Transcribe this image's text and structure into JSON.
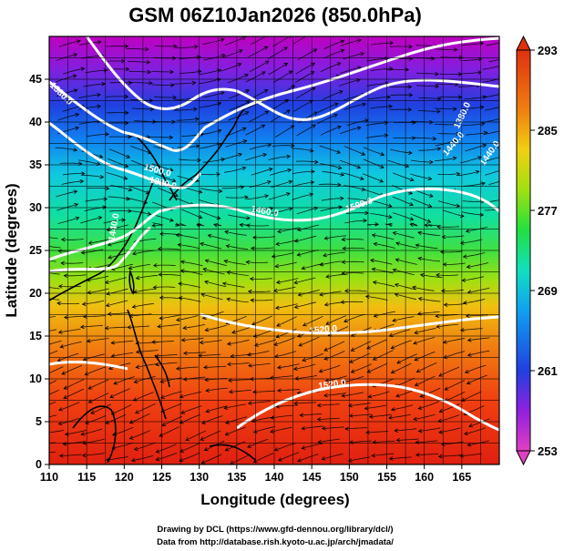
{
  "title": "GSM 06Z10Jan2026 (850.0hPa)",
  "x_axis": {
    "label": "Longitude (degrees)",
    "range": [
      110,
      170
    ],
    "ticks": [
      "110",
      "115",
      "120",
      "125",
      "130",
      "135",
      "140",
      "145",
      "150",
      "155",
      "160",
      "165"
    ]
  },
  "y_axis": {
    "label": "Latitude (degrees)",
    "range": [
      0,
      50
    ],
    "ticks": [
      "0",
      "5",
      "10",
      "15",
      "20",
      "25",
      "30",
      "35",
      "40",
      "45"
    ]
  },
  "colorbar": {
    "range": [
      253,
      293
    ],
    "ticks": [
      "253",
      "261",
      "269",
      "277",
      "285",
      "293"
    ]
  },
  "contour_labels": [
    "1380.0",
    "1440.0",
    "1440.0",
    "1500.0",
    "1320.0",
    "1380.0",
    "1440.0",
    "1500.0",
    "1520.0",
    "1520.0",
    "1460.0"
  ],
  "credits": {
    "line1": "Drawing by DCL (https://www.gfd-dennou.org/library/dcl/)",
    "line2": "Data from http://database.rish.kyoto-u.ac.jp/arch/jmadata/"
  }
}
